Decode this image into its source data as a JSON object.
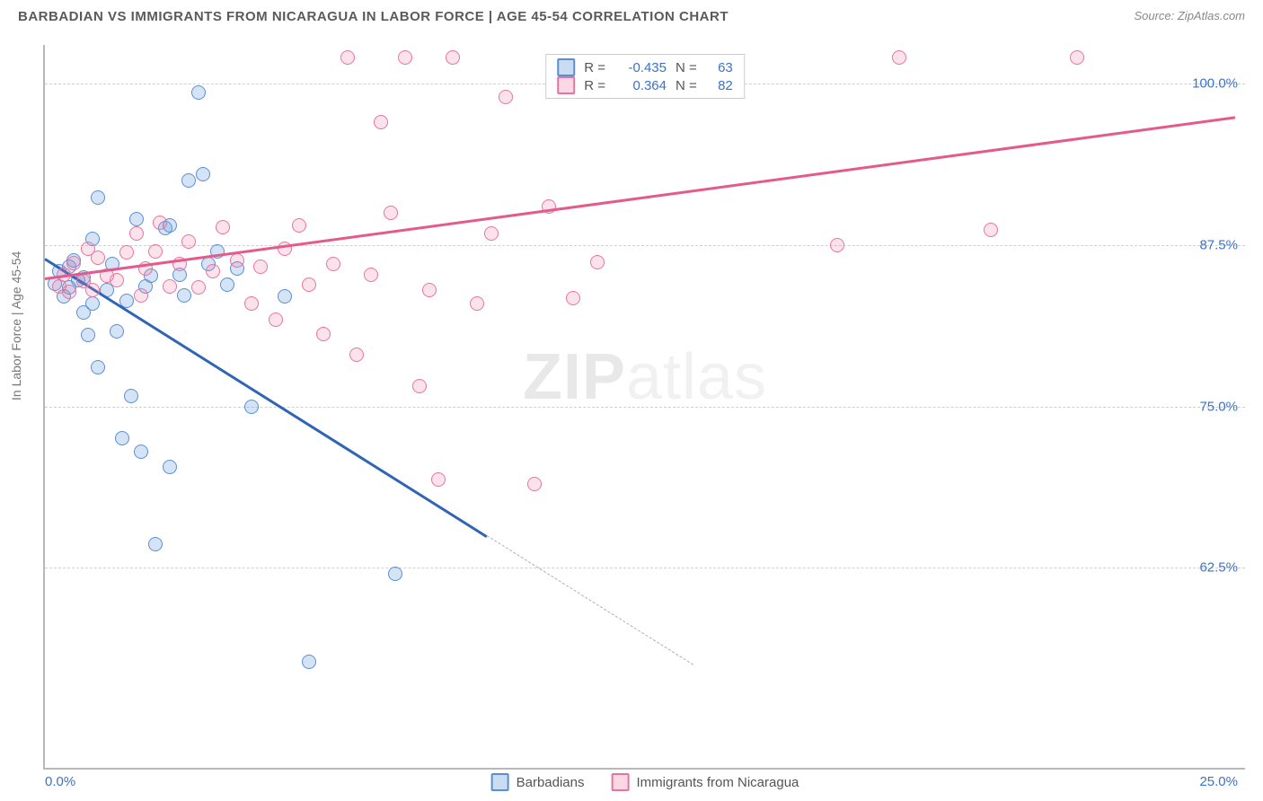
{
  "title": "BARBADIAN VS IMMIGRANTS FROM NICARAGUA IN LABOR FORCE | AGE 45-54 CORRELATION CHART",
  "source": "Source: ZipAtlas.com",
  "watermark": {
    "bold": "ZIP",
    "light": "atlas"
  },
  "chart": {
    "type": "scatter",
    "y_axis_title": "In Labor Force | Age 45-54",
    "xlim": [
      0,
      25
    ],
    "x_ticks": [
      {
        "pos": 0,
        "label": "0.0%"
      },
      {
        "pos": 25,
        "label": "25.0%"
      }
    ],
    "ylim": [
      47,
      103
    ],
    "y_gridlines": [
      {
        "value": 62.5,
        "label": "62.5%"
      },
      {
        "value": 75.0,
        "label": "75.0%"
      },
      {
        "value": 87.5,
        "label": "87.5%"
      },
      {
        "value": 100.0,
        "label": "100.0%"
      }
    ],
    "background_color": "#ffffff",
    "grid_color": "#d0d0d0",
    "axis_color": "#b8b8b8",
    "tick_label_color": "#3b72c4",
    "series": [
      {
        "name": "Barbadians",
        "marker_fill": "rgba(99,155,219,0.28)",
        "marker_stroke": "#5a8fd6",
        "trend_color": "#2f64b6",
        "swatch_fill": "rgba(99,155,219,0.35)",
        "swatch_border": "#5a8fd6",
        "trend": {
          "x1": 0,
          "y1": 86.5,
          "x2": 9.2,
          "y2": 65.0
        },
        "trend_extension": {
          "x1": 9.2,
          "y1": 65.0,
          "x2": 13.5,
          "y2": 55.0
        },
        "R": "-0.435",
        "N": "63",
        "points": [
          [
            0.2,
            84.5
          ],
          [
            0.3,
            85.5
          ],
          [
            0.4,
            83.5
          ],
          [
            0.5,
            84.2
          ],
          [
            0.5,
            85.8
          ],
          [
            0.6,
            86.3
          ],
          [
            0.7,
            84.8
          ],
          [
            0.8,
            85.0
          ],
          [
            0.8,
            82.3
          ],
          [
            0.9,
            80.5
          ],
          [
            1.0,
            83.0
          ],
          [
            1.0,
            88.0
          ],
          [
            1.1,
            91.2
          ],
          [
            1.1,
            78.0
          ],
          [
            1.3,
            84.0
          ],
          [
            1.4,
            86.0
          ],
          [
            1.5,
            80.8
          ],
          [
            1.6,
            72.5
          ],
          [
            1.7,
            83.2
          ],
          [
            1.8,
            75.8
          ],
          [
            1.9,
            89.5
          ],
          [
            2.0,
            71.5
          ],
          [
            2.1,
            84.3
          ],
          [
            2.2,
            85.1
          ],
          [
            2.3,
            64.3
          ],
          [
            2.5,
            88.8
          ],
          [
            2.6,
            89.0
          ],
          [
            2.6,
            70.3
          ],
          [
            2.8,
            85.2
          ],
          [
            2.9,
            83.6
          ],
          [
            3.0,
            92.5
          ],
          [
            3.2,
            99.3
          ],
          [
            3.3,
            93.0
          ],
          [
            3.4,
            86.0
          ],
          [
            3.6,
            87.0
          ],
          [
            3.8,
            84.4
          ],
          [
            4.0,
            85.7
          ],
          [
            4.3,
            75.0
          ],
          [
            5.0,
            83.5
          ],
          [
            5.5,
            55.2
          ],
          [
            7.3,
            62.0
          ]
        ]
      },
      {
        "name": "Immigants from Nicaragua",
        "display_name": "Immigrants from Nicaragua",
        "marker_fill": "rgba(243,125,165,0.22)",
        "marker_stroke": "#e774a0",
        "trend_color": "#e35a8b",
        "swatch_fill": "rgba(243,125,165,0.30)",
        "swatch_border": "#e774a0",
        "trend": {
          "x1": 0,
          "y1": 85.0,
          "x2": 24.8,
          "y2": 97.5
        },
        "R": "0.364",
        "N": "82",
        "points": [
          [
            0.3,
            84.3
          ],
          [
            0.4,
            85.2
          ],
          [
            0.5,
            83.9
          ],
          [
            0.6,
            86.1
          ],
          [
            0.8,
            84.7
          ],
          [
            0.9,
            87.2
          ],
          [
            1.0,
            84.0
          ],
          [
            1.1,
            86.5
          ],
          [
            1.3,
            85.1
          ],
          [
            1.5,
            84.8
          ],
          [
            1.7,
            86.9
          ],
          [
            1.9,
            88.4
          ],
          [
            2.0,
            83.6
          ],
          [
            2.1,
            85.7
          ],
          [
            2.3,
            87.0
          ],
          [
            2.4,
            89.2
          ],
          [
            2.6,
            84.3
          ],
          [
            2.8,
            86.0
          ],
          [
            3.0,
            87.8
          ],
          [
            3.2,
            84.2
          ],
          [
            3.5,
            85.5
          ],
          [
            3.7,
            88.9
          ],
          [
            4.0,
            86.3
          ],
          [
            4.3,
            83.0
          ],
          [
            4.5,
            85.8
          ],
          [
            4.8,
            81.7
          ],
          [
            5.0,
            87.2
          ],
          [
            5.3,
            89.0
          ],
          [
            5.5,
            84.4
          ],
          [
            5.8,
            80.6
          ],
          [
            6.0,
            86.0
          ],
          [
            6.3,
            102.0
          ],
          [
            6.5,
            79.0
          ],
          [
            6.8,
            85.2
          ],
          [
            7.0,
            97.0
          ],
          [
            7.2,
            90.0
          ],
          [
            7.5,
            102.0
          ],
          [
            7.8,
            76.6
          ],
          [
            8.0,
            84.0
          ],
          [
            8.2,
            69.3
          ],
          [
            8.5,
            102.0
          ],
          [
            9.0,
            83.0
          ],
          [
            9.3,
            88.4
          ],
          [
            9.6,
            99.0
          ],
          [
            10.2,
            69.0
          ],
          [
            10.5,
            90.5
          ],
          [
            11.0,
            83.4
          ],
          [
            11.5,
            86.2
          ],
          [
            16.5,
            87.5
          ],
          [
            17.8,
            102.0
          ],
          [
            19.7,
            88.7
          ],
          [
            21.5,
            102.0
          ]
        ]
      }
    ]
  },
  "legend_bottom": [
    {
      "label": "Barbadians",
      "series": 0
    },
    {
      "label": "Immigrants from Nicaragua",
      "series": 1
    }
  ]
}
